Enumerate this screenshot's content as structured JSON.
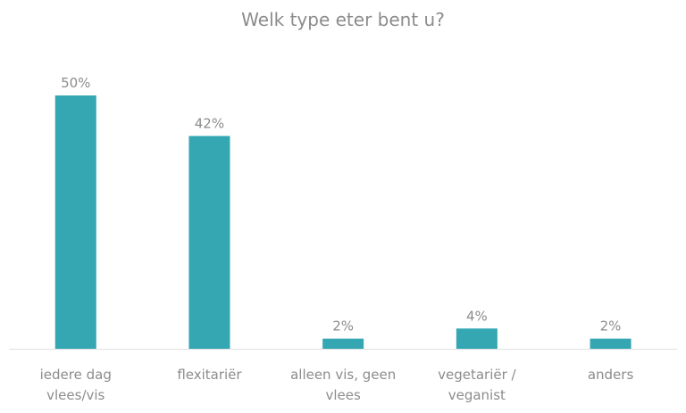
{
  "chart_data": {
    "type": "bar",
    "title": "Welk type eter bent u?",
    "categories": [
      [
        "iedere dag",
        "vlees/vis"
      ],
      [
        "flexitariër"
      ],
      [
        "alleen vis, geen",
        "vlees"
      ],
      [
        "vegetariër /",
        "veganist"
      ],
      [
        "anders"
      ]
    ],
    "values": [
      50,
      42,
      2,
      4,
      2
    ],
    "data_labels": [
      "50%",
      "42%",
      "2%",
      "4%",
      "2%"
    ],
    "xlabel": "",
    "ylabel": "",
    "ylim": [
      0,
      50
    ],
    "grid": false,
    "bar_color": "#34a7b2"
  }
}
